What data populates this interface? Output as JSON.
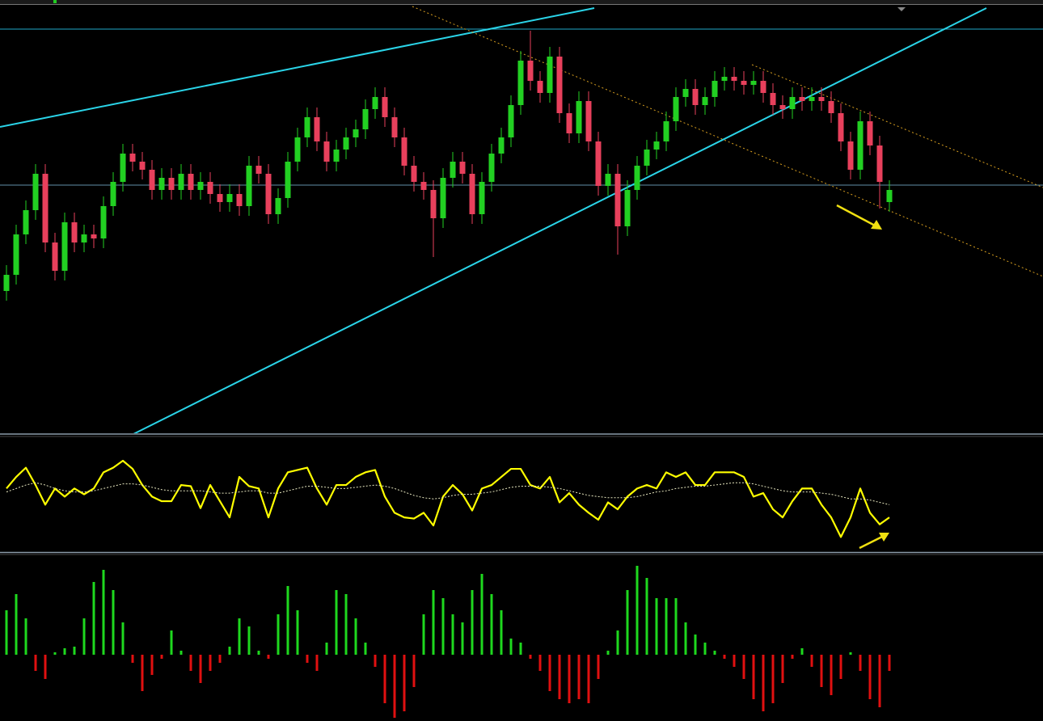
{
  "chart_data": [
    {
      "type": "candlestick",
      "up_color": "#22d022",
      "down_color": "#e8405c",
      "ylim": [
        0,
        527
      ],
      "open": [
        175,
        195,
        245,
        275,
        320,
        235,
        200,
        260,
        235,
        245,
        240,
        280,
        310,
        345,
        335,
        325,
        300,
        315,
        300,
        320,
        300,
        310,
        295,
        285,
        295,
        280,
        330,
        320,
        270,
        290,
        335,
        365,
        390,
        360,
        335,
        350,
        365,
        375,
        400,
        415,
        390,
        365,
        330,
        310,
        300,
        265,
        315,
        335,
        320,
        270,
        310,
        345,
        365,
        405,
        460,
        435,
        420,
        465,
        395,
        370,
        410,
        360,
        305,
        320,
        255,
        300,
        330,
        350,
        360,
        385,
        415,
        425,
        405,
        415,
        435,
        440,
        435,
        430,
        435,
        420,
        405,
        400,
        415,
        410,
        415,
        410,
        395,
        360,
        325,
        385,
        355,
        285
      ],
      "high": [
        207,
        257,
        287,
        332,
        332,
        247,
        272,
        272,
        257,
        257,
        292,
        322,
        357,
        357,
        347,
        337,
        327,
        327,
        332,
        332,
        322,
        322,
        307,
        307,
        307,
        342,
        342,
        332,
        302,
        347,
        377,
        402,
        402,
        372,
        362,
        377,
        387,
        412,
        427,
        427,
        402,
        377,
        342,
        322,
        312,
        327,
        347,
        347,
        332,
        322,
        357,
        377,
        417,
        472,
        497,
        447,
        477,
        477,
        407,
        422,
        422,
        372,
        332,
        332,
        312,
        342,
        362,
        372,
        397,
        427,
        437,
        437,
        427,
        447,
        452,
        452,
        447,
        447,
        447,
        432,
        417,
        427,
        427,
        427,
        427,
        422,
        407,
        372,
        397,
        397,
        367,
        312
      ],
      "low": [
        163,
        183,
        233,
        263,
        223,
        188,
        188,
        223,
        223,
        228,
        228,
        268,
        298,
        323,
        313,
        288,
        288,
        288,
        288,
        288,
        288,
        283,
        273,
        273,
        268,
        268,
        308,
        258,
        258,
        278,
        323,
        353,
        348,
        323,
        323,
        338,
        353,
        363,
        388,
        378,
        353,
        318,
        298,
        288,
        217,
        253,
        303,
        308,
        258,
        258,
        298,
        333,
        353,
        393,
        423,
        408,
        408,
        383,
        358,
        358,
        348,
        293,
        293,
        220,
        243,
        288,
        318,
        338,
        348,
        373,
        403,
        393,
        393,
        403,
        423,
        423,
        418,
        418,
        408,
        393,
        388,
        388,
        398,
        398,
        398,
        383,
        348,
        313,
        313,
        343,
        277,
        273
      ],
      "close": [
        195,
        245,
        275,
        320,
        235,
        200,
        260,
        235,
        245,
        240,
        280,
        310,
        345,
        335,
        325,
        300,
        315,
        300,
        320,
        300,
        310,
        295,
        285,
        295,
        280,
        330,
        320,
        270,
        290,
        335,
        365,
        390,
        360,
        335,
        350,
        365,
        375,
        400,
        415,
        390,
        365,
        330,
        310,
        300,
        265,
        315,
        335,
        320,
        270,
        310,
        345,
        365,
        405,
        460,
        435,
        420,
        465,
        395,
        370,
        410,
        360,
        305,
        320,
        255,
        300,
        330,
        350,
        360,
        385,
        415,
        425,
        405,
        415,
        435,
        440,
        435,
        430,
        435,
        420,
        405,
        400,
        415,
        410,
        415,
        410,
        395,
        360,
        325,
        385,
        355,
        310,
        300
      ]
    },
    {
      "type": "line",
      "ylim": [
        0,
        100
      ],
      "series": [
        {
          "color": "#ffff00",
          "style": "solid",
          "values": [
            55,
            65,
            73,
            58,
            41,
            55,
            48,
            55,
            50,
            55,
            69,
            73,
            79,
            72,
            58,
            48,
            44,
            44,
            58,
            57,
            38,
            58,
            44,
            30,
            65,
            57,
            55,
            30,
            55,
            69,
            71,
            73,
            55,
            41,
            58,
            58,
            65,
            69,
            71,
            48,
            34,
            30,
            29,
            34,
            23,
            48,
            58,
            50,
            36,
            55,
            58,
            65,
            72,
            72,
            58,
            55,
            65,
            43,
            51,
            41,
            34,
            28,
            43,
            37,
            48,
            55,
            58,
            55,
            69,
            65,
            69,
            58,
            58,
            69,
            69,
            69,
            65,
            48,
            51,
            37,
            30,
            44,
            55,
            55,
            41,
            30,
            13,
            30,
            55,
            34,
            24,
            30
          ]
        },
        {
          "color": "#e8e8c0",
          "style": "dashed",
          "values": [
            52,
            55,
            58,
            60,
            58,
            55,
            53,
            52,
            52,
            53,
            55,
            57,
            59,
            59,
            58,
            56,
            54,
            53,
            53,
            53,
            53,
            52,
            51,
            51,
            52,
            53,
            53,
            51,
            51,
            53,
            55,
            57,
            57,
            56,
            55,
            55,
            56,
            57,
            58,
            57,
            55,
            52,
            49,
            47,
            46,
            47,
            49,
            50,
            50,
            51,
            52,
            54,
            56,
            57,
            57,
            57,
            56,
            55,
            53,
            51,
            49,
            48,
            47,
            47,
            47,
            48,
            50,
            52,
            53,
            55,
            56,
            57,
            57,
            58,
            59,
            60,
            60,
            59,
            57,
            55,
            53,
            52,
            52,
            52,
            51,
            50,
            48,
            46,
            46,
            45,
            43,
            41
          ]
        }
      ]
    },
    {
      "type": "bar",
      "up_color": "#1ed81e",
      "down_color": "#e01010",
      "ylim": [
        -82,
        124
      ],
      "values": [
        55,
        75,
        45,
        -20,
        -30,
        3,
        8,
        10,
        45,
        90,
        105,
        80,
        40,
        -10,
        -45,
        -25,
        -5,
        30,
        5,
        -20,
        -35,
        -20,
        -10,
        10,
        45,
        35,
        5,
        -5,
        50,
        85,
        55,
        -10,
        -20,
        15,
        80,
        75,
        45,
        15,
        -15,
        -60,
        -78,
        -70,
        -40,
        50,
        80,
        70,
        50,
        40,
        80,
        100,
        75,
        55,
        20,
        15,
        -5,
        -20,
        -45,
        -55,
        -60,
        -55,
        -60,
        -30,
        5,
        30,
        80,
        110,
        95,
        70,
        70,
        70,
        40,
        25,
        15,
        5,
        -5,
        -15,
        -30,
        -55,
        -70,
        -60,
        -35,
        -5,
        8,
        -15,
        -40,
        -50,
        -30,
        3,
        -20,
        -55,
        -65,
        -20
      ]
    }
  ]
}
